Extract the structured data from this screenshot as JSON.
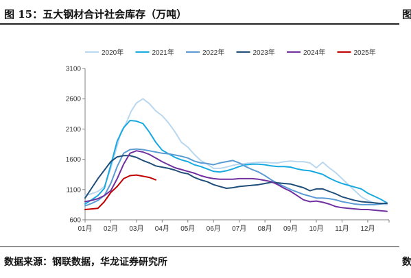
{
  "figure": {
    "title": "图 15：五大钢材合计社会库存（万吨）",
    "source": "数据来源：钢联数据，华龙证券研究所",
    "edge_title_fragment": "图",
    "edge_source_fragment": "数"
  },
  "chart_data": {
    "type": "line",
    "xlabel": "",
    "ylabel": "",
    "ylim": [
      600,
      3100
    ],
    "yticks": [
      600,
      1100,
      1600,
      2100,
      2600,
      3100
    ],
    "xlim": [
      1,
      12.83
    ],
    "categories": [
      "01月",
      "02月",
      "03月",
      "04月",
      "05月",
      "06月",
      "07月",
      "08月",
      "09月",
      "10月",
      "11月",
      "12月"
    ],
    "grid": false,
    "legend_position": "top",
    "series": [
      {
        "name": "2020年",
        "color": "#b9d7ef",
        "x": [
          1.0,
          1.25,
          1.5,
          1.75,
          2.0,
          2.2,
          2.4,
          2.6,
          2.8,
          3.0,
          3.25,
          3.5,
          3.75,
          4.0,
          4.25,
          4.5,
          4.75,
          5.0,
          5.25,
          5.5,
          5.75,
          6.0,
          6.25,
          6.5,
          6.75,
          7.0,
          7.25,
          7.5,
          7.75,
          8.0,
          8.25,
          8.5,
          8.75,
          9.0,
          9.25,
          9.5,
          9.75,
          10.0,
          10.25,
          10.5,
          10.75,
          11.0,
          11.25,
          11.5,
          11.75,
          12.0,
          12.25,
          12.5,
          12.75
        ],
        "y": [
          1000,
          1030,
          1070,
          1150,
          1450,
          1750,
          2050,
          2200,
          2400,
          2530,
          2600,
          2520,
          2400,
          2320,
          2200,
          2050,
          1880,
          1800,
          1680,
          1580,
          1520,
          1450,
          1450,
          1470,
          1500,
          1520,
          1530,
          1540,
          1550,
          1550,
          1540,
          1540,
          1560,
          1570,
          1560,
          1560,
          1540,
          1460,
          1550,
          1460,
          1380,
          1280,
          1180,
          1080,
          980,
          920,
          880,
          860,
          850
        ]
      },
      {
        "name": "2021年",
        "color": "#18a9e1",
        "x": [
          1.0,
          1.25,
          1.5,
          1.75,
          2.0,
          2.25,
          2.5,
          2.75,
          3.0,
          3.25,
          3.5,
          3.75,
          4.0,
          4.25,
          4.5,
          4.75,
          5.0,
          5.25,
          5.5,
          5.75,
          6.0,
          6.25,
          6.5,
          6.75,
          7.0,
          7.25,
          7.5,
          7.75,
          8.0,
          8.25,
          8.5,
          8.75,
          9.0,
          9.25,
          9.5,
          9.75,
          10.0,
          10.25,
          10.5,
          10.75,
          11.0,
          11.25,
          11.5,
          11.75,
          12.0,
          12.25,
          12.5,
          12.75
        ],
        "y": [
          860,
          930,
          1000,
          1120,
          1500,
          1900,
          2120,
          2240,
          2230,
          2190,
          2050,
          1880,
          1750,
          1690,
          1630,
          1590,
          1560,
          1510,
          1480,
          1440,
          1400,
          1390,
          1410,
          1440,
          1480,
          1510,
          1520,
          1520,
          1510,
          1490,
          1480,
          1480,
          1470,
          1440,
          1420,
          1410,
          1380,
          1350,
          1290,
          1240,
          1200,
          1170,
          1140,
          1110,
          1040,
          990,
          940,
          880
        ]
      },
      {
        "name": "2022年",
        "color": "#5b9bd5",
        "x": [
          1.0,
          1.25,
          1.5,
          1.75,
          2.0,
          2.25,
          2.5,
          2.75,
          3.0,
          3.25,
          3.5,
          3.75,
          4.0,
          4.25,
          4.5,
          4.75,
          5.0,
          5.25,
          5.5,
          5.75,
          6.0,
          6.25,
          6.5,
          6.75,
          7.0,
          7.25,
          7.5,
          7.75,
          8.0,
          8.25,
          8.5,
          8.75,
          9.0,
          9.25,
          9.5,
          9.75,
          10.0,
          10.25,
          10.5,
          10.75,
          11.0,
          11.25,
          11.5,
          11.75,
          12.0,
          12.25,
          12.5,
          12.75
        ],
        "y": [
          830,
          870,
          920,
          1000,
          1200,
          1480,
          1700,
          1760,
          1770,
          1760,
          1740,
          1720,
          1700,
          1690,
          1670,
          1650,
          1620,
          1570,
          1540,
          1530,
          1510,
          1540,
          1560,
          1580,
          1540,
          1480,
          1430,
          1390,
          1330,
          1260,
          1200,
          1150,
          1100,
          1060,
          1020,
          990,
          960,
          960,
          950,
          930,
          900,
          880,
          860,
          850,
          850,
          850,
          860,
          880
        ]
      },
      {
        "name": "2023年",
        "color": "#1f4e79",
        "x": [
          1.0,
          1.25,
          1.5,
          1.75,
          2.0,
          2.25,
          2.5,
          2.75,
          3.0,
          3.25,
          3.5,
          3.75,
          4.0,
          4.25,
          4.5,
          4.75,
          5.0,
          5.25,
          5.5,
          5.75,
          6.0,
          6.25,
          6.5,
          6.75,
          7.0,
          7.25,
          7.5,
          7.75,
          8.0,
          8.25,
          8.5,
          8.75,
          9.0,
          9.25,
          9.5,
          9.75,
          10.0,
          10.25,
          10.5,
          10.75,
          11.0,
          11.25,
          11.5,
          11.75,
          12.0,
          12.25,
          12.5,
          12.75
        ],
        "y": [
          960,
          1120,
          1280,
          1420,
          1560,
          1640,
          1660,
          1660,
          1630,
          1580,
          1540,
          1490,
          1470,
          1450,
          1420,
          1380,
          1360,
          1300,
          1260,
          1230,
          1180,
          1150,
          1120,
          1130,
          1150,
          1160,
          1170,
          1180,
          1200,
          1220,
          1210,
          1200,
          1190,
          1160,
          1130,
          1080,
          1110,
          1110,
          1070,
          1030,
          980,
          950,
          920,
          900,
          890,
          880,
          870,
          870
        ]
      },
      {
        "name": "2024年",
        "color": "#7030a0",
        "x": [
          1.0,
          1.25,
          1.5,
          1.75,
          2.0,
          2.25,
          2.5,
          2.75,
          3.0,
          3.25,
          3.5,
          3.75,
          4.0,
          4.25,
          4.5,
          4.75,
          5.0,
          5.25,
          5.5,
          5.75,
          6.0,
          6.25,
          6.5,
          6.75,
          7.0,
          7.25,
          7.5,
          7.75,
          8.0,
          8.25,
          8.5,
          8.75,
          9.0,
          9.25,
          9.5,
          9.75,
          10.0,
          10.25,
          10.5,
          10.75,
          11.0,
          11.25,
          11.5,
          11.75,
          12.0,
          12.25,
          12.5,
          12.75
        ],
        "y": [
          900,
          920,
          950,
          1000,
          1080,
          1280,
          1520,
          1700,
          1740,
          1720,
          1680,
          1620,
          1560,
          1510,
          1460,
          1430,
          1400,
          1370,
          1330,
          1300,
          1280,
          1270,
          1270,
          1270,
          1280,
          1280,
          1280,
          1270,
          1250,
          1230,
          1180,
          1120,
          1070,
          1000,
          930,
          900,
          910,
          890,
          860,
          820,
          800,
          790,
          780,
          770,
          770,
          760,
          750,
          740
        ]
      },
      {
        "name": "2025年",
        "color": "#c00000",
        "x": [
          1.0,
          1.25,
          1.5,
          1.75,
          2.0,
          2.25,
          2.5,
          2.75,
          3.0,
          3.25,
          3.5,
          3.75
        ],
        "y": [
          770,
          780,
          790,
          900,
          1050,
          1150,
          1280,
          1330,
          1340,
          1320,
          1300,
          1260
        ]
      }
    ]
  }
}
